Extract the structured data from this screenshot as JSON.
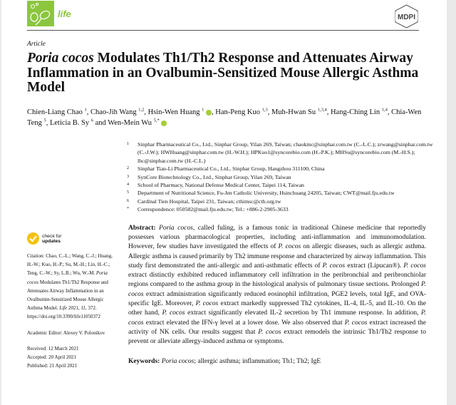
{
  "header": {
    "journal": "life",
    "publisher": "MDPI",
    "accent": "#8cc63f"
  },
  "article_type": "Article",
  "title": {
    "italic": "Poria cocos",
    "rest": " Modulates Th1/Th2 Response and Attenuates Airway Inflammation in an Ovalbumin-Sensitized Mouse Allergic Asthma Model"
  },
  "authors": [
    {
      "name": "Chien-Liang Chao",
      "aff": "1",
      "sep": ", "
    },
    {
      "name": "Chao-Jih Wang",
      "aff": "1,2",
      "sep": ", "
    },
    {
      "name": "Hsin-Wen Huang",
      "aff": "1",
      "orcid": true,
      "sep": ", "
    },
    {
      "name": "Han-Peng Kuo",
      "aff": "1,3",
      "sep": ", "
    },
    {
      "name": "Muh-Hwan Su",
      "aff": "1,3,4",
      "sep": ", "
    },
    {
      "name": "Hang-Ching Lin",
      "aff": "1,4",
      "sep": ", "
    },
    {
      "name": "Chia-Wen Teng",
      "aff": "5",
      "sep": ", "
    },
    {
      "name": "Leticia B. Sy",
      "aff": "6",
      "sep": " and "
    },
    {
      "name": "Wen-Mein Wu",
      "aff": "5,*",
      "orcid": true,
      "sep": ""
    }
  ],
  "affiliations": [
    {
      "n": "1",
      "text": "Sinphar Pharmaceutical Co., Ltd., Sinphar Group, Yilan 269, Taiwan; chaokmc@sinphar.com.tw (C.-L.C.); zrwang@sinphar.com.tw (C.-J.W.); HWHuang@sinphar.com.tw (H.-W.H.); HPKuo1@syncorebio.com (H.-P.K.); MHSu@syncorebio.com (M.-H.S.); lhc@sinphar.com.tw (H.-C.L.)"
    },
    {
      "n": "2",
      "text": "Sinphar Tian-Li Pharmaceutical Co., Ltd., Sinphar Group, Hangzhou 311100, China"
    },
    {
      "n": "3",
      "text": "SynCore Biotechnology Co., Ltd., Sinphar Group, Yilan 269, Taiwan"
    },
    {
      "n": "4",
      "text": "School of Pharmacy, National Defense Medical Center, Taipei 114, Taiwan"
    },
    {
      "n": "5",
      "text": "Department of Nutritional Science, Fu-Jen Catholic University, Hsinchuang 24205, Taiwan; CWT@mail.fju.edu.tw"
    },
    {
      "n": "6",
      "text": "Cardinal Tien Hospital, Taipei 231, Taiwan; cthimsc@cth.org.tw"
    },
    {
      "n": "*",
      "text": "Correspondence: 050582@mail.fju.edu.tw; Tel.: +886-2-2905-3633"
    }
  ],
  "check_updates": {
    "line1": "check for",
    "line2": "updates"
  },
  "citation": {
    "label": "Citation:",
    "text": "Chao, C.-L.; Wang, C.-J.; Huang, H.-W.; Kuo, H.-P.; Su, M.-H.; Lin, H.-C.; Teng, C.-W.; Sy, L.B.; Wu, W.-M. ",
    "italic": "Poria cocos",
    "text2": " Modulates Th1/Th2 Response and Attenuates Airway Inflammation in an Ovalbumin-Sensitized Mouse Allergic Asthma Model. ",
    "journal": "Life",
    "text3": " 2021, ",
    "volume": "11",
    "text4": ", 372. https://doi.org/10.3390/life11050372"
  },
  "editor": "Academic Editor: Alexey V. Polonikov",
  "dates": [
    "Received: 12 March 2021",
    "Accepted: 20 April 2021",
    "Published: 21 April 2021"
  ],
  "abstract": {
    "label": "Abstract:",
    "segments": [
      {
        "t": " "
      },
      {
        "t": "Poria cocos",
        "i": true
      },
      {
        "t": ", called fuling, is a famous tonic in traditional Chinese medicine that reportedly possesses various pharmacological properties, including anti-inflammation and immunomodulation. However, few studies have investigated the effects of "
      },
      {
        "t": "P. cocos",
        "i": true
      },
      {
        "t": " on allergic diseases, such as allergic asthma. Allergic asthma is caused primarily by Th2 immune response and characterized by airway inflammation. This study first demonstrated the anti-allergic and anti-asthmatic effects of "
      },
      {
        "t": "P. cocos",
        "i": true
      },
      {
        "t": " extract (Lipucan®). "
      },
      {
        "t": "P. cocos",
        "i": true
      },
      {
        "t": " extract distinctly exhibited reduced inflammatory cell infiltration in the peribronchial and peribronchiolar regions compared to the asthma group in the histological analysis of pulmonary tissue sections. Prolonged "
      },
      {
        "t": "P. cocos",
        "i": true
      },
      {
        "t": " extract administration significantly reduced eosinophil infiltration, PGE2 levels, total IgE, and OVA-specific IgE. Moreover, "
      },
      {
        "t": "P. cocos",
        "i": true
      },
      {
        "t": " extract markedly suppressed Th2 cytokines, IL-4, IL-5, and IL-10. On the other hand, "
      },
      {
        "t": "P. cocos",
        "i": true
      },
      {
        "t": " extract significantly elevated IL-2 secretion by Th1 immune response. In addition, "
      },
      {
        "t": "P. cocos",
        "i": true
      },
      {
        "t": " extract elevated the IFN-γ level at a lower dose. We also observed that "
      },
      {
        "t": "P. cocos",
        "i": true
      },
      {
        "t": " extract increased the activity of NK cells. Our results suggest that "
      },
      {
        "t": "P. cocos",
        "i": true
      },
      {
        "t": " extract remodels the intrinsic Th1/Th2 response to prevent or alleviate allergy-induced asthma or symptoms."
      }
    ]
  },
  "keywords": {
    "label": "Keywords:",
    "italic": "Poria cocos",
    "rest": "; allergic asthma; inflammation; Th1; Th2; IgE"
  }
}
